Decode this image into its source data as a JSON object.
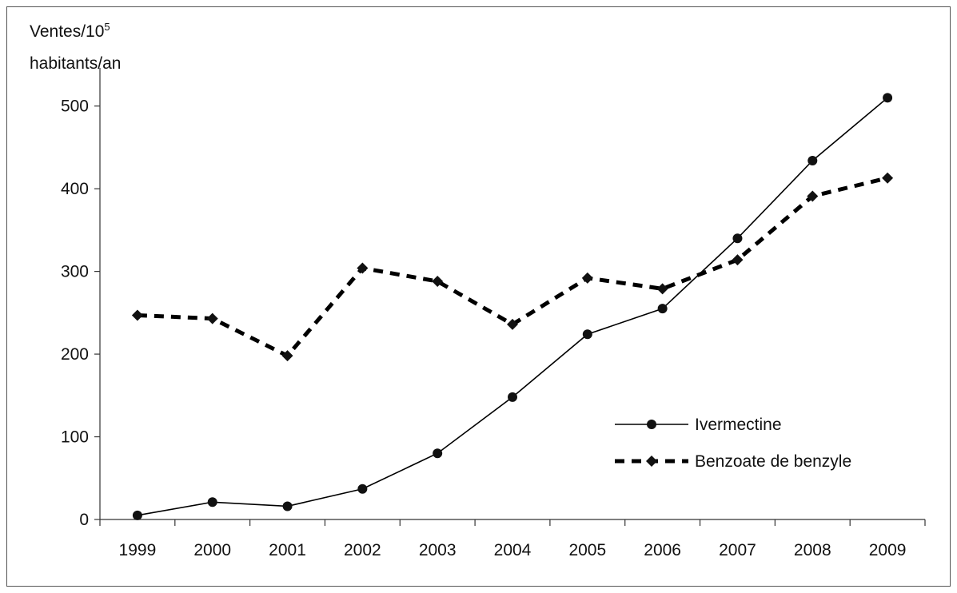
{
  "chart_data": {
    "type": "line",
    "ylabel_line1": "Ventes/10",
    "ylabel_superscript": "5",
    "ylabel_line2": "habitants/an",
    "categories": [
      "1999",
      "2000",
      "2001",
      "2002",
      "2003",
      "2004",
      "2005",
      "2006",
      "2007",
      "2008",
      "2009"
    ],
    "ylim": [
      0,
      550
    ],
    "yticks": [
      0,
      100,
      200,
      300,
      400,
      500
    ],
    "series": [
      {
        "name": "Ivermectine",
        "style": "solid",
        "marker": "circle",
        "color": "#000000",
        "values": [
          5,
          21,
          16,
          37,
          80,
          148,
          224,
          255,
          340,
          434,
          510
        ]
      },
      {
        "name": "Benzoate de benzyle",
        "style": "dashed",
        "marker": "diamond",
        "color": "#000000",
        "values": [
          247,
          243,
          198,
          304,
          288,
          236,
          292,
          279,
          314,
          391,
          413
        ]
      }
    ],
    "legend_position": "lower-right",
    "grid": false
  }
}
